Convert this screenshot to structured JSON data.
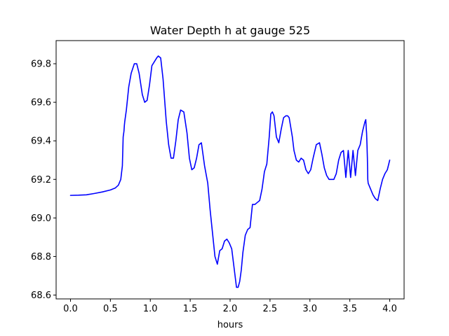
{
  "chart_data": {
    "type": "line",
    "title": "Water Depth h at gauge 525",
    "xlabel": "hours",
    "ylabel": "",
    "xlim": [
      -0.18,
      4.18
    ],
    "ylim": [
      68.58,
      69.92
    ],
    "xticks": [
      0.0,
      0.5,
      1.0,
      1.5,
      2.0,
      2.5,
      3.0,
      3.5,
      4.0
    ],
    "xtick_labels": [
      "0.0",
      "0.5",
      "1.0",
      "1.5",
      "2.0",
      "2.5",
      "3.0",
      "3.5",
      "4.0"
    ],
    "yticks": [
      68.6,
      68.8,
      69.0,
      69.2,
      69.4,
      69.6,
      69.8
    ],
    "ytick_labels": [
      "68.6",
      "68.8",
      "69.0",
      "69.2",
      "69.4",
      "69.6",
      "69.8"
    ],
    "grid": false,
    "series": [
      {
        "color": "#0000ff",
        "x": [
          0.0,
          0.1,
          0.2,
          0.3,
          0.4,
          0.5,
          0.56,
          0.6,
          0.63,
          0.65,
          0.66,
          0.67,
          0.675,
          0.68,
          0.7,
          0.71,
          0.73,
          0.76,
          0.8,
          0.83,
          0.86,
          0.9,
          0.93,
          0.96,
          0.99,
          1.02,
          1.05,
          1.08,
          1.1,
          1.13,
          1.16,
          1.2,
          1.23,
          1.26,
          1.29,
          1.32,
          1.35,
          1.38,
          1.42,
          1.46,
          1.49,
          1.52,
          1.55,
          1.58,
          1.61,
          1.64,
          1.68,
          1.72,
          1.75,
          1.78,
          1.81,
          1.84,
          1.87,
          1.9,
          1.93,
          1.96,
          1.99,
          2.02,
          2.05,
          2.08,
          2.1,
          2.12,
          2.14,
          2.16,
          2.19,
          2.22,
          2.25,
          2.28,
          2.31,
          2.34,
          2.37,
          2.4,
          2.43,
          2.46,
          2.49,
          2.51,
          2.53,
          2.55,
          2.58,
          2.61,
          2.64,
          2.67,
          2.7,
          2.72,
          2.74,
          2.76,
          2.78,
          2.8,
          2.83,
          2.86,
          2.89,
          2.92,
          2.95,
          2.98,
          3.01,
          3.04,
          3.08,
          3.12,
          3.15,
          3.18,
          3.21,
          3.24,
          3.27,
          3.3,
          3.33,
          3.36,
          3.39,
          3.42,
          3.45,
          3.48,
          3.51,
          3.54,
          3.57,
          3.6,
          3.63,
          3.66,
          3.69,
          3.7,
          3.705,
          3.71,
          3.715,
          3.72,
          3.725,
          3.73,
          3.76,
          3.79,
          3.82,
          3.85,
          3.88,
          3.91,
          3.94,
          3.97,
          4.0
        ],
        "y": [
          69.117,
          69.118,
          69.12,
          69.127,
          69.135,
          69.145,
          69.155,
          69.17,
          69.2,
          69.27,
          69.42,
          69.45,
          69.48,
          69.5,
          69.56,
          69.6,
          69.68,
          69.75,
          69.8,
          69.8,
          69.75,
          69.64,
          69.6,
          69.61,
          69.69,
          69.79,
          69.81,
          69.83,
          69.84,
          69.83,
          69.72,
          69.5,
          69.38,
          69.31,
          69.31,
          69.4,
          69.51,
          69.56,
          69.55,
          69.44,
          69.31,
          69.25,
          69.26,
          69.31,
          69.38,
          69.39,
          69.27,
          69.18,
          69.04,
          68.92,
          68.8,
          68.76,
          68.83,
          68.84,
          68.88,
          68.89,
          68.87,
          68.84,
          68.74,
          68.64,
          68.64,
          68.67,
          68.73,
          68.82,
          68.91,
          68.94,
          68.95,
          69.07,
          69.07,
          69.08,
          69.09,
          69.15,
          69.24,
          69.28,
          69.42,
          69.54,
          69.55,
          69.53,
          69.42,
          69.39,
          69.46,
          69.52,
          69.53,
          69.53,
          69.52,
          69.47,
          69.42,
          69.35,
          69.3,
          69.29,
          69.31,
          69.3,
          69.25,
          69.23,
          69.25,
          69.31,
          69.38,
          69.39,
          69.33,
          69.26,
          69.22,
          69.2,
          69.2,
          69.2,
          69.23,
          69.3,
          69.34,
          69.35,
          69.21,
          69.35,
          69.21,
          69.35,
          69.22,
          69.35,
          69.38,
          69.45,
          69.5,
          69.51,
          69.47,
          69.44,
          69.38,
          69.31,
          69.2,
          69.18,
          69.15,
          69.12,
          69.1,
          69.09,
          69.15,
          69.2,
          69.23,
          69.25,
          69.3
        ]
      }
    ]
  }
}
